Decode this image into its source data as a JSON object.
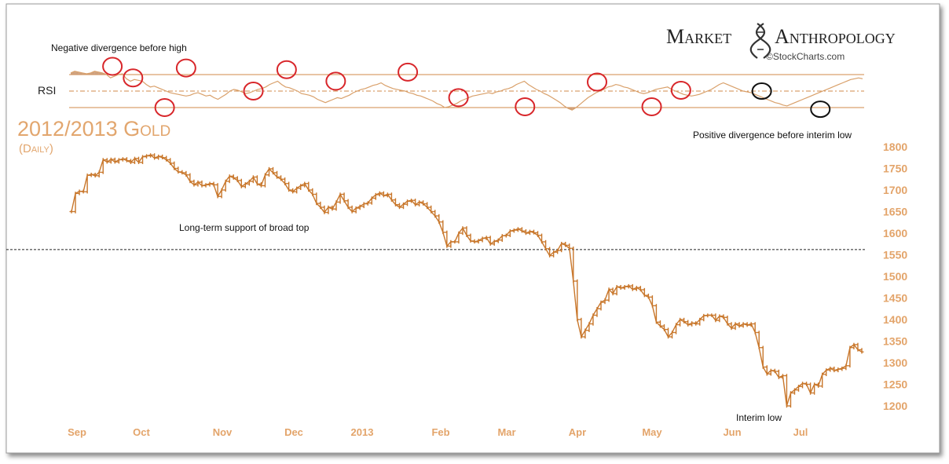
{
  "brand": {
    "name_left": "Market",
    "name_right": "Anthropology",
    "source": "©StockCharts.com"
  },
  "colors": {
    "price": "#C8762A",
    "rsi_line": "#D9A06A",
    "rsi_fill": "#C8936A",
    "title": "#E2A66E",
    "axis_label": "#E3A46A",
    "circle_red": "#D8262A",
    "circle_black": "#111111"
  },
  "chart_data": {
    "type": "line",
    "title": "2012/2013 Gold",
    "subtitle": "(Daily)",
    "ylim": [
      1170,
      1815
    ],
    "yticks": [
      1200,
      1250,
      1300,
      1350,
      1400,
      1450,
      1500,
      1550,
      1600,
      1650,
      1700,
      1750,
      1800
    ],
    "month_labels": [
      "Sep",
      "Oct",
      "Nov",
      "Dec",
      "2013",
      "Feb",
      "Mar",
      "Apr",
      "May",
      "Jun",
      "Jul"
    ],
    "support_level": 1562,
    "series": [
      {
        "values": [
          1650,
          1692,
          1697,
          1696,
          1734,
          1736,
          1733,
          1741,
          1770,
          1765,
          1771,
          1765,
          1770,
          1772,
          1768,
          1764,
          1773,
          1764,
          1777,
          1779,
          1781,
          1774,
          1778,
          1775,
          1770,
          1762,
          1750,
          1742,
          1740,
          1735,
          1720,
          1712,
          1718,
          1710,
          1712,
          1715,
          1712,
          1685,
          1700,
          1720,
          1732,
          1728,
          1722,
          1708,
          1714,
          1720,
          1730,
          1714,
          1710,
          1735,
          1749,
          1740,
          1730,
          1725,
          1715,
          1700,
          1696,
          1704,
          1710,
          1715,
          1700,
          1690,
          1669,
          1660,
          1648,
          1660,
          1656,
          1672,
          1690,
          1675,
          1660,
          1650,
          1658,
          1662,
          1668,
          1670,
          1681,
          1689,
          1693,
          1687,
          1690,
          1677,
          1666,
          1660,
          1667,
          1674,
          1676,
          1666,
          1672,
          1668,
          1660,
          1650,
          1640,
          1626,
          1602,
          1570,
          1580,
          1580,
          1600,
          1612,
          1595,
          1582,
          1580,
          1583,
          1588,
          1590,
          1575,
          1581,
          1584,
          1594,
          1595,
          1605,
          1607,
          1610,
          1605,
          1600,
          1604,
          1601,
          1595,
          1580,
          1564,
          1548,
          1556,
          1560,
          1576,
          1572,
          1565,
          1489,
          1400,
          1360,
          1375,
          1390,
          1410,
          1425,
          1440,
          1445,
          1470,
          1460,
          1476,
          1473,
          1476,
          1478,
          1470,
          1474,
          1469,
          1456,
          1452,
          1432,
          1394,
          1385,
          1377,
          1360,
          1370,
          1388,
          1400,
          1395,
          1388,
          1392,
          1390,
          1400,
          1409,
          1410,
          1410,
          1398,
          1408,
          1405,
          1390,
          1380,
          1390,
          1385,
          1390,
          1387,
          1390,
          1370,
          1335,
          1290,
          1274,
          1282,
          1280,
          1266,
          1270,
          1200,
          1230,
          1237,
          1245,
          1252,
          1250,
          1230,
          1250,
          1246,
          1273,
          1283,
          1287,
          1282,
          1285,
          1287,
          1293,
          1335,
          1342,
          1330,
          1325
        ]
      }
    ],
    "rsi": {
      "label": "RSI",
      "levels": [
        70,
        50,
        30
      ],
      "values": [
        72,
        74,
        73,
        72,
        71,
        72,
        74,
        73,
        72,
        70,
        66,
        68,
        70,
        71,
        65,
        62,
        64,
        63,
        62,
        58,
        55,
        56,
        54,
        52,
        50,
        48,
        47,
        46,
        45,
        44,
        45,
        47,
        48,
        46,
        44,
        45,
        42,
        40,
        43,
        46,
        50,
        52,
        51,
        49,
        47,
        48,
        50,
        52,
        53,
        55,
        58,
        60,
        62,
        58,
        55,
        54,
        52,
        50,
        47,
        46,
        45,
        43,
        40,
        38,
        36,
        38,
        40,
        42,
        41,
        43,
        45,
        48,
        50,
        52,
        53,
        55,
        57,
        58,
        60,
        57,
        55,
        53,
        52,
        51,
        50,
        48,
        47,
        45,
        44,
        42,
        40,
        38,
        35,
        33,
        30,
        31,
        33,
        35,
        38,
        40,
        42,
        44,
        45,
        46,
        47,
        48,
        47,
        49,
        50,
        52,
        53,
        55,
        58,
        60,
        62,
        58,
        55,
        52,
        50,
        47,
        45,
        42,
        39,
        36,
        32,
        29,
        27,
        30,
        34,
        38,
        42,
        45,
        48,
        50,
        52,
        55,
        56,
        58,
        57,
        55,
        54,
        52,
        50,
        48,
        47,
        48,
        50,
        52,
        53,
        54,
        55,
        52,
        50,
        48,
        46,
        45,
        44,
        45,
        46,
        48,
        50,
        52,
        55,
        58,
        60,
        58,
        56,
        54,
        52,
        50,
        49,
        48,
        46,
        44,
        42,
        40,
        38,
        36,
        35,
        33,
        32,
        34,
        36,
        38,
        40,
        42,
        44,
        46,
        48,
        50,
        52,
        54,
        56,
        58,
        60,
        62,
        64,
        65,
        66,
        65
      ],
      "circles_red": [
        [
          13,
          80
        ],
        [
          39,
          66
        ],
        [
          79,
          30
        ],
        [
          106,
          78
        ],
        [
          191,
          50
        ],
        [
          233,
          76
        ],
        [
          295,
          62
        ],
        [
          386,
          73
        ],
        [
          450,
          42
        ],
        [
          534,
          31
        ],
        [
          625,
          61
        ],
        [
          694,
          31
        ],
        [
          731,
          51
        ]
      ],
      "circles_black": [
        [
          833,
          50
        ],
        [
          907,
          28
        ]
      ]
    },
    "annotations": [
      {
        "text": "Negative divergence before high"
      },
      {
        "text": "Positive divergence before interim low"
      },
      {
        "text": "Long-term support of broad top"
      },
      {
        "text": "Interim low"
      }
    ]
  }
}
